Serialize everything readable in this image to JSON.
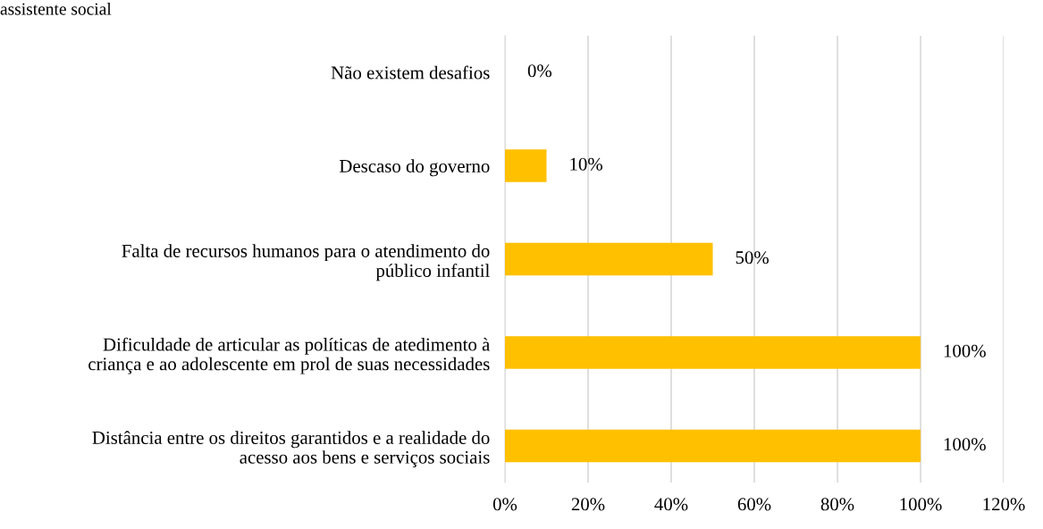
{
  "chart_data": {
    "type": "bar",
    "orientation": "horizontal",
    "title": "assistente social",
    "categories": [
      "Não existem desafios",
      "Descaso do governo",
      "Falta de recursos humanos para o atendimento do\npúblico infantil",
      "Dificuldade de articular as políticas de atedimento à\ncriança e ao adolescente em prol de suas necessidades",
      "Distância entre os direitos garantidos e a realidade do\nacesso aos bens e serviços sociais"
    ],
    "values": [
      0,
      10,
      50,
      100,
      100
    ],
    "value_labels": [
      "0%",
      "10%",
      "50%",
      "100%",
      "100%"
    ],
    "color": "#ffc000",
    "xlim": [
      0,
      120
    ],
    "xticks": [
      {
        "value": 0,
        "label": "0%"
      },
      {
        "value": 20,
        "label": "20%"
      },
      {
        "value": 40,
        "label": "40%"
      },
      {
        "value": 60,
        "label": "60%"
      },
      {
        "value": 80,
        "label": "80%"
      },
      {
        "value": 100,
        "label": "100%"
      },
      {
        "value": 120,
        "label": "120%"
      }
    ],
    "grid": "x",
    "legend": false
  }
}
